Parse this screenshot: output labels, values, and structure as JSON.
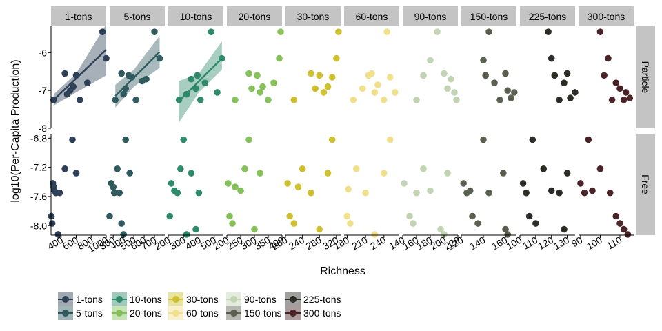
{
  "chart_data": {
    "type": "scatter",
    "title": "",
    "xlabel": "Richness",
    "ylabel": "log10(Per-Capita Production)",
    "facets": {
      "columns": [
        "1-tons",
        "5-tons",
        "10-tons",
        "20-tons",
        "30-tons",
        "60-tons",
        "90-tons",
        "150-tons",
        "225-tons",
        "300-tons"
      ],
      "rows": [
        "Particle",
        "Free"
      ]
    },
    "y_axes": {
      "Particle": {
        "ticks": [
          -8,
          -7,
          -6
        ],
        "labels": [
          "-8",
          "-7",
          "-6"
        ],
        "ylim": [
          -8.0,
          -5.3
        ]
      },
      "Free": {
        "ticks": [
          -8.0,
          -7.6,
          -7.2,
          -6.8
        ],
        "labels": [
          "-8.0",
          "-7.6",
          "-7.2",
          "-6.8"
        ],
        "ylim": [
          -8.13,
          -6.74
        ]
      }
    },
    "x_axes": [
      {
        "facet": "1-tons",
        "xlim": [
          265,
          1000
        ],
        "ticks": [
          400,
          600,
          800,
          1000
        ],
        "labels": [
          "400",
          "600",
          "800",
          "1000"
        ]
      },
      {
        "facet": "5-tons",
        "xlim": [
          265,
          800
        ],
        "ticks": [
          300,
          400,
          500,
          600,
          700
        ],
        "labels": [
          "300",
          "400",
          "500",
          "600",
          "700"
        ]
      },
      {
        "facet": "10-tons",
        "xlim": [
          200,
          560
        ],
        "ticks": [
          200,
          300,
          400,
          500
        ],
        "labels": [
          "200",
          "300",
          "400",
          "500"
        ]
      },
      {
        "facet": "20-tons",
        "xlim": [
          200,
          400
        ],
        "ticks": [
          200,
          250,
          300,
          350,
          400
        ],
        "labels": [
          "200",
          "250",
          "300",
          "350",
          "400"
        ]
      },
      {
        "facet": "30-tons",
        "xlim": [
          200,
          330
        ],
        "ticks": [
          200,
          240,
          280,
          320
        ],
        "labels": [
          "200",
          "240",
          "280",
          "320"
        ]
      },
      {
        "facet": "60-tons",
        "xlim": [
          175,
          265
        ],
        "ticks": [
          180,
          210,
          240
        ],
        "labels": [
          "180",
          "210",
          "240"
        ]
      },
      {
        "facet": "90-tons",
        "xlim": [
          140,
          220
        ],
        "ticks": [
          140,
          160,
          180,
          200,
          220
        ],
        "labels": [
          "140",
          "160",
          "180",
          "200",
          "220"
        ]
      },
      {
        "facet": "150-tons",
        "xlim": [
          120,
          170
        ],
        "ticks": [
          120,
          140,
          160
        ],
        "labels": [
          "120",
          "140",
          "160"
        ]
      },
      {
        "facet": "225-tons",
        "xlim": [
          100,
          135
        ],
        "ticks": [
          100,
          110,
          120,
          130
        ],
        "labels": [
          "100",
          "110",
          "120",
          "130"
        ]
      },
      {
        "facet": "300-tons",
        "xlim": [
          89,
          117
        ],
        "ticks": [
          90,
          100,
          110
        ],
        "labels": [
          "90",
          "100",
          "110"
        ]
      }
    ],
    "colors": {
      "1-tons": "#2e4057",
      "5-tons": "#2f5a5e",
      "10-tons": "#2e8a6a",
      "20-tons": "#86c05a",
      "30-tons": "#cfc030",
      "60-tons": "#f0e08c",
      "90-tons": "#c2d4b4",
      "150-tons": "#5a6050",
      "225-tons": "#2d2d28",
      "300-tons": "#4a2428"
    },
    "series": [
      {
        "name": "1-tons",
        "facet": 0,
        "row": "Particle",
        "x": [
          300,
          450,
          480,
          520,
          560,
          600,
          650,
          750,
          950,
          1000
        ],
        "y": [
          -7.25,
          -6.55,
          -7.1,
          -7.0,
          -6.9,
          -6.6,
          -7.25,
          -6.8,
          -5.45,
          -6.15
        ]
      },
      {
        "name": "1-tons",
        "facet": 0,
        "row": "Free",
        "x": [
          270,
          280,
          290,
          300,
          310,
          330,
          360,
          380,
          450,
          550,
          600
        ],
        "y": [
          -7.87,
          -7.97,
          -7.42,
          -7.47,
          -7.52,
          -7.55,
          -8.12,
          -7.55,
          -7.22,
          -6.82,
          -7.28
        ]
      },
      {
        "name": "5-tons",
        "facet": 1,
        "row": "Particle",
        "x": [
          320,
          380,
          400,
          420,
          450,
          480,
          520,
          580,
          620,
          700,
          750
        ],
        "y": [
          -7.25,
          -6.55,
          -7.1,
          -6.95,
          -6.6,
          -6.65,
          -7.25,
          -6.75,
          -6.7,
          -5.45,
          -6.15
        ]
      },
      {
        "name": "5-tons",
        "facet": 1,
        "row": "Free",
        "x": [
          265,
          280,
          300,
          310,
          340,
          360,
          380,
          400,
          420,
          460
        ],
        "y": [
          -7.87,
          -7.42,
          -7.47,
          -7.55,
          -7.22,
          -7.55,
          -7.97,
          -8.12,
          -6.82,
          -7.28
        ]
      },
      {
        "name": "10-tons",
        "facet": 2,
        "row": "Particle",
        "x": [
          270,
          320,
          350,
          380,
          390,
          410,
          440,
          480,
          520,
          550
        ],
        "y": [
          -7.25,
          -7.1,
          -6.7,
          -6.95,
          -6.6,
          -7.25,
          -6.8,
          -5.45,
          -7.05,
          -6.15
        ]
      },
      {
        "name": "10-tons",
        "facet": 2,
        "row": "Free",
        "x": [
          210,
          220,
          240,
          260,
          280,
          300,
          320,
          350,
          380,
          400
        ],
        "y": [
          -7.87,
          -7.42,
          -7.52,
          -7.55,
          -7.22,
          -6.82,
          -8.12,
          -7.28,
          -8.05,
          -7.55
        ]
      },
      {
        "name": "20-tons",
        "facet": 3,
        "row": "Particle",
        "x": [
          230,
          280,
          290,
          310,
          320,
          330,
          350,
          370,
          390,
          395
        ],
        "y": [
          -7.25,
          -6.55,
          -6.95,
          -6.6,
          -7.05,
          -6.9,
          -7.25,
          -6.8,
          -6.15,
          -5.45
        ]
      },
      {
        "name": "20-tons",
        "facet": 3,
        "row": "Free",
        "x": [
          205,
          210,
          220,
          230,
          250,
          265,
          280,
          300,
          320
        ],
        "y": [
          -7.42,
          -7.87,
          -7.97,
          -7.47,
          -7.52,
          -7.22,
          -6.82,
          -8.05,
          -7.28
        ]
      },
      {
        "name": "30-tons",
        "facet": 4,
        "row": "Particle",
        "x": [
          220,
          260,
          270,
          280,
          290,
          300,
          310,
          320,
          325
        ],
        "y": [
          -7.25,
          -6.55,
          -6.95,
          -6.6,
          -7.05,
          -6.9,
          -6.65,
          -6.15,
          -5.45
        ]
      },
      {
        "name": "30-tons",
        "facet": 4,
        "row": "Free",
        "x": [
          205,
          210,
          220,
          230,
          240,
          260,
          280,
          300,
          310
        ],
        "y": [
          -7.42,
          -7.87,
          -7.97,
          -7.47,
          -7.22,
          -7.55,
          -8.05,
          -7.28,
          -6.82
        ]
      },
      {
        "name": "60-tons",
        "facet": 5,
        "row": "Particle",
        "x": [
          190,
          205,
          215,
          220,
          225,
          230,
          240,
          245,
          250,
          258
        ],
        "y": [
          -7.25,
          -6.95,
          -6.6,
          -6.55,
          -7.05,
          -6.85,
          -7.25,
          -5.45,
          -6.65,
          -7.05
        ]
      },
      {
        "name": "60-tons",
        "facet": 5,
        "row": "Free",
        "x": [
          180,
          182,
          185,
          195,
          210,
          225,
          240,
          250
        ],
        "y": [
          -7.87,
          -7.5,
          -7.97,
          -7.22,
          -7.55,
          -8.12,
          -7.28,
          -6.82
        ]
      },
      {
        "name": "90-tons",
        "facet": 6,
        "row": "Particle",
        "x": [
          160,
          170,
          180,
          190,
          200,
          205,
          210,
          215,
          218
        ],
        "y": [
          -7.25,
          -6.6,
          -6.2,
          -5.45,
          -6.55,
          -6.95,
          -6.7,
          -7.05,
          -7.25
        ]
      },
      {
        "name": "90-tons",
        "facet": 6,
        "row": "Free",
        "x": [
          142,
          150,
          155,
          160,
          170,
          180,
          195,
          200,
          205
        ],
        "y": [
          -7.42,
          -7.87,
          -7.97,
          -7.55,
          -7.22,
          -7.52,
          -8.05,
          -8.12,
          -7.28
        ]
      },
      {
        "name": "150-tons",
        "facet": 7,
        "row": "Particle",
        "x": [
          140,
          142,
          145,
          150,
          155,
          160,
          162,
          165,
          168
        ],
        "y": [
          -6.2,
          -6.6,
          -5.45,
          -6.8,
          -7.25,
          -6.55,
          -7.0,
          -7.2,
          -7.05
        ]
      },
      {
        "name": "150-tons",
        "facet": 7,
        "row": "Free",
        "x": [
          122,
          125,
          128,
          130,
          135,
          140,
          145,
          158,
          160,
          162
        ],
        "y": [
          -7.42,
          -7.55,
          -7.52,
          -7.87,
          -7.97,
          -6.82,
          -7.55,
          -7.28,
          -8.05,
          -8.12
        ]
      },
      {
        "name": "225-tons",
        "facet": 8,
        "row": "Particle",
        "x": [
          118,
          120,
          122,
          125,
          128,
          130,
          132,
          135
        ],
        "y": [
          -5.45,
          -6.15,
          -6.6,
          -7.25,
          -6.8,
          -6.55,
          -7.2,
          -7.05
        ]
      },
      {
        "name": "225-tons",
        "facet": 8,
        "row": "Free",
        "x": [
          102,
          104,
          106,
          108,
          110,
          115,
          120,
          125,
          128,
          130
        ],
        "y": [
          -7.42,
          -7.55,
          -7.87,
          -6.82,
          -7.97,
          -7.22,
          -7.52,
          -7.55,
          -8.05,
          -7.28
        ]
      },
      {
        "name": "300-tons",
        "facet": 9,
        "row": "Particle",
        "x": [
          100,
          102,
          104,
          106,
          108,
          110,
          112,
          113,
          115
        ],
        "y": [
          -5.45,
          -6.6,
          -6.15,
          -7.25,
          -6.8,
          -6.95,
          -7.25,
          -7.05,
          -7.2
        ]
      },
      {
        "name": "300-tons",
        "facet": 9,
        "row": "Free",
        "x": [
          90,
          92,
          94,
          96,
          100,
          105,
          108,
          110,
          112,
          114
        ],
        "y": [
          -7.42,
          -7.55,
          -6.82,
          -7.52,
          -7.22,
          -7.55,
          -7.87,
          -7.97,
          -8.05,
          -8.12
        ]
      }
    ],
    "fits": [
      {
        "facet": "1-tons",
        "row": "Particle",
        "x": [
          300,
          1000
        ],
        "y": [
          -7.25,
          -5.92
        ],
        "band_lo": [
          -7.4,
          -6.6
        ],
        "band_hi": [
          -7.1,
          -5.25
        ],
        "mid": 600,
        "mid_lo": -7.05,
        "mid_hi": -6.55
      },
      {
        "facet": "5-tons",
        "row": "Particle",
        "x": [
          320,
          750
        ],
        "y": [
          -7.15,
          -5.98
        ],
        "band_lo": [
          -7.45,
          -6.4
        ],
        "band_hi": [
          -6.85,
          -5.55
        ],
        "mid": 500,
        "mid_lo": -6.9,
        "mid_hi": -6.45
      },
      {
        "facet": "10-tons",
        "row": "Particle",
        "x": [
          270,
          550
        ],
        "y": [
          -7.28,
          -6.15
        ],
        "band_lo": [
          -7.85,
          -6.45
        ],
        "band_hi": [
          -6.75,
          -5.7
        ],
        "mid": 400,
        "mid_lo": -7.05,
        "mid_hi": -6.55
      }
    ],
    "legend": {
      "position": "bottom",
      "entries": [
        "1-tons",
        "5-tons",
        "10-tons",
        "20-tons",
        "30-tons",
        "60-tons",
        "90-tons",
        "150-tons",
        "225-tons",
        "300-tons"
      ]
    },
    "grid": false
  }
}
